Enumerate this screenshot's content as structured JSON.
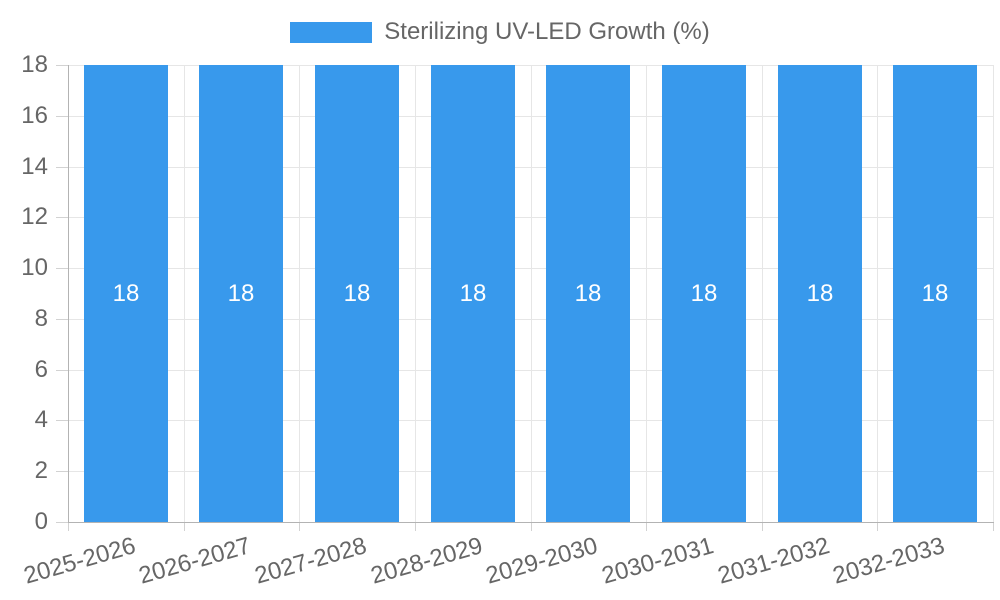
{
  "chart_data": {
    "type": "bar",
    "title": "",
    "legend": {
      "label": "Sterilizing UV-LED Growth (%)",
      "position": "top"
    },
    "categories": [
      "2025-2026",
      "2026-2027",
      "2027-2028",
      "2028-2029",
      "2029-2030",
      "2030-2031",
      "2031-2032",
      "2032-2033"
    ],
    "series": [
      {
        "name": "Sterilizing UV-LED Growth (%)",
        "values": [
          18,
          18,
          18,
          18,
          18,
          18,
          18,
          18
        ],
        "color": "#3899ec"
      }
    ],
    "bar_value_labels": [
      "18",
      "18",
      "18",
      "18",
      "18",
      "18",
      "18",
      "18"
    ],
    "xlabel": "",
    "ylabel": "",
    "ylim": [
      0,
      18
    ],
    "yticks": [
      0,
      2,
      4,
      6,
      8,
      10,
      12,
      14,
      16,
      18
    ],
    "grid": true,
    "colors": {
      "bar": "#3899ec",
      "gridline": "#e6e6e6",
      "axis_border": "#b3b3b3",
      "tick_mark": "#d2d2d2",
      "tick_text": "#666666",
      "bar_label_text": "#ffffff",
      "background": "#ffffff"
    }
  }
}
